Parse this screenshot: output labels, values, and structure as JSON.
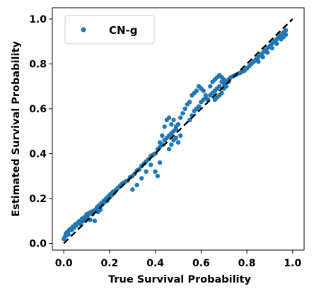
{
  "chart_data": {
    "type": "scatter",
    "xlabel": "True Survival Probability",
    "ylabel": "Estimated Survival Probability",
    "xlim": [
      -0.05,
      1.05
    ],
    "ylim": [
      -0.03,
      1.05
    ],
    "xticks": [
      0.0,
      0.2,
      0.4,
      0.6,
      0.8,
      1.0
    ],
    "yticks": [
      0.0,
      0.2,
      0.4,
      0.6,
      0.8,
      1.0
    ],
    "xtick_labels": [
      "0.0",
      "0.2",
      "0.4",
      "0.6",
      "0.8",
      "1.0"
    ],
    "ytick_labels": [
      "0.0",
      "0.2",
      "0.4",
      "0.6",
      "0.8",
      "1.0"
    ],
    "grid": false,
    "legend": {
      "position": "top-left",
      "entries": [
        "CN-g"
      ]
    },
    "reference_line": {
      "style": "dashed",
      "color": "#000000",
      "points": [
        [
          0.0,
          0.0
        ],
        [
          1.0,
          1.0
        ]
      ]
    },
    "series": [
      {
        "name": "CN-g",
        "color": "#1f77b4",
        "marker": "circle",
        "points": [
          [
            0.0,
            0.02
          ],
          [
            0.005,
            0.03
          ],
          [
            0.01,
            0.035
          ],
          [
            0.01,
            0.045
          ],
          [
            0.015,
            0.05
          ],
          [
            0.02,
            0.04
          ],
          [
            0.02,
            0.055
          ],
          [
            0.025,
            0.06
          ],
          [
            0.03,
            0.065
          ],
          [
            0.035,
            0.06
          ],
          [
            0.04,
            0.075
          ],
          [
            0.045,
            0.07
          ],
          [
            0.05,
            0.085
          ],
          [
            0.055,
            0.08
          ],
          [
            0.06,
            0.09
          ],
          [
            0.065,
            0.095
          ],
          [
            0.07,
            0.1
          ],
          [
            0.075,
            0.085
          ],
          [
            0.08,
            0.11
          ],
          [
            0.085,
            0.1
          ],
          [
            0.09,
            0.115
          ],
          [
            0.095,
            0.12
          ],
          [
            0.1,
            0.11
          ],
          [
            0.1,
            0.13
          ],
          [
            0.105,
            0.125
          ],
          [
            0.11,
            0.135
          ],
          [
            0.115,
            0.105
          ],
          [
            0.12,
            0.14
          ],
          [
            0.125,
            0.13
          ],
          [
            0.13,
            0.145
          ],
          [
            0.135,
            0.1
          ],
          [
            0.14,
            0.15
          ],
          [
            0.145,
            0.16
          ],
          [
            0.15,
            0.14
          ],
          [
            0.15,
            0.165
          ],
          [
            0.155,
            0.17
          ],
          [
            0.16,
            0.15
          ],
          [
            0.165,
            0.18
          ],
          [
            0.17,
            0.175
          ],
          [
            0.175,
            0.19
          ],
          [
            0.18,
            0.185
          ],
          [
            0.185,
            0.2
          ],
          [
            0.19,
            0.19
          ],
          [
            0.195,
            0.21
          ],
          [
            0.2,
            0.205
          ],
          [
            0.205,
            0.22
          ],
          [
            0.21,
            0.215
          ],
          [
            0.215,
            0.23
          ],
          [
            0.22,
            0.225
          ],
          [
            0.225,
            0.235
          ],
          [
            0.23,
            0.24
          ],
          [
            0.235,
            0.245
          ],
          [
            0.24,
            0.25
          ],
          [
            0.245,
            0.255
          ],
          [
            0.25,
            0.26
          ],
          [
            0.255,
            0.265
          ],
          [
            0.26,
            0.27
          ],
          [
            0.27,
            0.275
          ],
          [
            0.28,
            0.28
          ],
          [
            0.29,
            0.295
          ],
          [
            0.3,
            0.3
          ],
          [
            0.31,
            0.31
          ],
          [
            0.32,
            0.325
          ],
          [
            0.33,
            0.33
          ],
          [
            0.34,
            0.345
          ],
          [
            0.35,
            0.355
          ],
          [
            0.36,
            0.365
          ],
          [
            0.37,
            0.375
          ],
          [
            0.38,
            0.39
          ],
          [
            0.39,
            0.395
          ],
          [
            0.4,
            0.4
          ],
          [
            0.41,
            0.42
          ],
          [
            0.42,
            0.43
          ],
          [
            0.43,
            0.44
          ],
          [
            0.44,
            0.46
          ],
          [
            0.45,
            0.47
          ],
          [
            0.46,
            0.48
          ],
          [
            0.47,
            0.49
          ],
          [
            0.48,
            0.5
          ],
          [
            0.49,
            0.51
          ],
          [
            0.3,
            0.24
          ],
          [
            0.32,
            0.26
          ],
          [
            0.34,
            0.29
          ],
          [
            0.36,
            0.32
          ],
          [
            0.38,
            0.35
          ],
          [
            0.4,
            0.32
          ],
          [
            0.41,
            0.3
          ],
          [
            0.42,
            0.36
          ],
          [
            0.42,
            0.45
          ],
          [
            0.43,
            0.48
          ],
          [
            0.44,
            0.52
          ],
          [
            0.45,
            0.55
          ],
          [
            0.46,
            0.56
          ],
          [
            0.47,
            0.53
          ],
          [
            0.48,
            0.55
          ],
          [
            0.49,
            0.52
          ],
          [
            0.46,
            0.42
          ],
          [
            0.47,
            0.44
          ],
          [
            0.48,
            0.46
          ],
          [
            0.49,
            0.47
          ],
          [
            0.5,
            0.45
          ],
          [
            0.51,
            0.48
          ],
          [
            0.5,
            0.53
          ],
          [
            0.51,
            0.56
          ],
          [
            0.52,
            0.58
          ],
          [
            0.53,
            0.6
          ],
          [
            0.54,
            0.62
          ],
          [
            0.55,
            0.63
          ],
          [
            0.56,
            0.66
          ],
          [
            0.57,
            0.67
          ],
          [
            0.58,
            0.68
          ],
          [
            0.59,
            0.7
          ],
          [
            0.6,
            0.69
          ],
          [
            0.61,
            0.68
          ],
          [
            0.62,
            0.66
          ],
          [
            0.55,
            0.55
          ],
          [
            0.56,
            0.57
          ],
          [
            0.57,
            0.59
          ],
          [
            0.58,
            0.6
          ],
          [
            0.59,
            0.61
          ],
          [
            0.6,
            0.63
          ],
          [
            0.61,
            0.64
          ],
          [
            0.62,
            0.65
          ],
          [
            0.63,
            0.64
          ],
          [
            0.64,
            0.66
          ],
          [
            0.65,
            0.67
          ],
          [
            0.66,
            0.68
          ],
          [
            0.67,
            0.69
          ],
          [
            0.68,
            0.7
          ],
          [
            0.69,
            0.72
          ],
          [
            0.7,
            0.71
          ],
          [
            0.71,
            0.72
          ],
          [
            0.72,
            0.73
          ],
          [
            0.73,
            0.74
          ],
          [
            0.74,
            0.745
          ],
          [
            0.75,
            0.75
          ],
          [
            0.66,
            0.64
          ],
          [
            0.67,
            0.65
          ],
          [
            0.68,
            0.66
          ],
          [
            0.69,
            0.67
          ],
          [
            0.7,
            0.69
          ],
          [
            0.71,
            0.7
          ],
          [
            0.72,
            0.72
          ],
          [
            0.64,
            0.7
          ],
          [
            0.65,
            0.72
          ],
          [
            0.66,
            0.73
          ],
          [
            0.67,
            0.74
          ],
          [
            0.68,
            0.75
          ],
          [
            0.69,
            0.74
          ],
          [
            0.7,
            0.73
          ],
          [
            0.76,
            0.755
          ],
          [
            0.77,
            0.76
          ],
          [
            0.78,
            0.765
          ],
          [
            0.79,
            0.77
          ],
          [
            0.8,
            0.78
          ],
          [
            0.81,
            0.79
          ],
          [
            0.82,
            0.8
          ],
          [
            0.83,
            0.81
          ],
          [
            0.84,
            0.82
          ],
          [
            0.85,
            0.83
          ],
          [
            0.86,
            0.84
          ],
          [
            0.87,
            0.85
          ],
          [
            0.88,
            0.86
          ],
          [
            0.89,
            0.87
          ],
          [
            0.9,
            0.88
          ],
          [
            0.91,
            0.89
          ],
          [
            0.92,
            0.9
          ],
          [
            0.93,
            0.91
          ],
          [
            0.94,
            0.92
          ],
          [
            0.95,
            0.93
          ],
          [
            0.96,
            0.94
          ],
          [
            0.97,
            0.95
          ],
          [
            0.85,
            0.81
          ],
          [
            0.87,
            0.83
          ],
          [
            0.89,
            0.85
          ],
          [
            0.91,
            0.87
          ],
          [
            0.93,
            0.89
          ],
          [
            0.95,
            0.91
          ],
          [
            0.96,
            0.92
          ],
          [
            0.97,
            0.93
          ]
        ]
      }
    ]
  }
}
